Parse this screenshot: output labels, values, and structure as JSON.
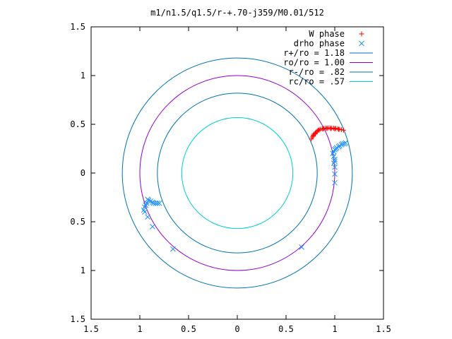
{
  "chart_data": {
    "type": "scatter",
    "title": "m1/n1.5/q1.5/r-+.70-j359/M0.01/512",
    "xlabel": "",
    "ylabel": "",
    "xlim": [
      -1.5,
      1.5
    ],
    "ylim": [
      -1.5,
      1.5
    ],
    "x_tick_values": [
      -1.5,
      -1,
      -0.5,
      0,
      0.5,
      1,
      1.5
    ],
    "x_tick_labels": [
      "1.5",
      "1",
      "0.5",
      "0",
      "0.5",
      "1",
      "1.5"
    ],
    "y_tick_values": [
      1.5,
      1,
      0.5,
      0,
      -0.5,
      -1,
      -1.5
    ],
    "y_tick_labels": [
      "1.5",
      "1",
      "0.5",
      "0",
      "0.5",
      "1",
      "1.5"
    ],
    "grid": false,
    "legend_position": "top-right",
    "series": [
      {
        "name": "W phase",
        "kind": "points",
        "marker": "plus",
        "color": "#ff0000",
        "points": [
          [
            0.76,
            0.35
          ],
          [
            0.77,
            0.37
          ],
          [
            0.78,
            0.39
          ],
          [
            0.79,
            0.4
          ],
          [
            0.8,
            0.41
          ],
          [
            0.81,
            0.42
          ],
          [
            0.82,
            0.43
          ],
          [
            0.83,
            0.44
          ],
          [
            0.85,
            0.45
          ],
          [
            0.87,
            0.455
          ],
          [
            0.89,
            0.46
          ],
          [
            0.91,
            0.462
          ],
          [
            0.93,
            0.463
          ],
          [
            0.95,
            0.463
          ],
          [
            0.97,
            0.462
          ],
          [
            0.99,
            0.46
          ],
          [
            1.01,
            0.458
          ],
          [
            1.03,
            0.455
          ],
          [
            1.05,
            0.45
          ],
          [
            1.07,
            0.445
          ],
          [
            1.09,
            0.44
          ],
          [
            0.78,
            0.38
          ],
          [
            0.8,
            0.4
          ],
          [
            0.84,
            0.44
          ],
          [
            0.88,
            0.452
          ],
          [
            0.92,
            0.456
          ],
          [
            0.96,
            0.456
          ],
          [
            1.0,
            0.452
          ],
          [
            1.04,
            0.448
          ]
        ]
      },
      {
        "name": "drho phase",
        "kind": "points",
        "marker": "cross",
        "color": "#1e90ff",
        "points": [
          [
            0.98,
            0.2
          ],
          [
            0.99,
            0.22
          ],
          [
            1.0,
            0.24
          ],
          [
            1.01,
            0.25
          ],
          [
            1.02,
            0.26
          ],
          [
            1.04,
            0.27
          ],
          [
            1.05,
            0.28
          ],
          [
            1.07,
            0.29
          ],
          [
            1.08,
            0.3
          ],
          [
            1.1,
            0.3
          ],
          [
            1.11,
            0.31
          ],
          [
            0.99,
            0.17
          ],
          [
            1.0,
            0.14
          ],
          [
            1.0,
            0.12
          ],
          [
            0.99,
            0.1
          ],
          [
            1.0,
            0.06
          ],
          [
            1.0,
            -0.01
          ],
          [
            1.0,
            -0.1
          ],
          [
            -0.92,
            -0.27
          ],
          [
            -0.91,
            -0.28
          ],
          [
            -0.89,
            -0.29
          ],
          [
            -0.87,
            -0.3
          ],
          [
            -0.86,
            -0.31
          ],
          [
            -0.84,
            -0.31
          ],
          [
            -0.82,
            -0.31
          ],
          [
            -0.8,
            -0.31
          ],
          [
            -0.93,
            -0.31
          ],
          [
            -0.94,
            -0.33
          ],
          [
            -0.95,
            -0.35
          ],
          [
            -0.96,
            -0.38
          ],
          [
            -0.95,
            -0.4
          ],
          [
            -0.92,
            -0.45
          ],
          [
            -0.87,
            -0.55
          ],
          [
            -0.66,
            -0.78
          ],
          [
            0.66,
            -0.76
          ]
        ]
      },
      {
        "name": "r+/ro = 1.18",
        "kind": "circle",
        "radius": 1.18,
        "color": "#0072b2"
      },
      {
        "name": "ro/ro = 1.00",
        "kind": "circle",
        "radius": 1.0,
        "color": "#9400d3"
      },
      {
        "name": "r-/ro = .82",
        "kind": "circle",
        "radius": 0.82,
        "color": "#0072b2"
      },
      {
        "name": "rc/ro = .57",
        "kind": "circle",
        "radius": 0.57,
        "color": "#00d0d0"
      }
    ]
  }
}
